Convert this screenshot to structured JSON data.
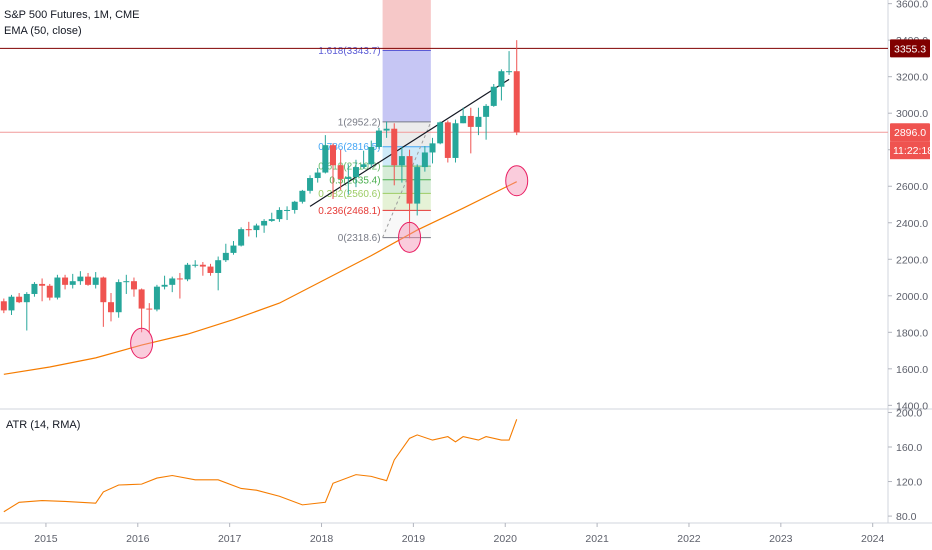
{
  "header": {
    "title": "S&P 500 Futures, 1M, CME",
    "indicator": "EMA (50, close)",
    "atr_label": "ATR (14, RMA)"
  },
  "badges": {
    "resistance": "3355.3",
    "last_price": "2896.0",
    "countdown": "11:22:18"
  },
  "colors": {
    "up": "#26a69a",
    "down": "#ef5350",
    "ema": "#f57c00",
    "atr": "#f57c00",
    "resistance": "#800000",
    "last_price_line": "#f19a9a",
    "countdown_bg": "#ef5350",
    "circle": "#f48fb1"
  },
  "chart_data": [
    {
      "type": "candlestick",
      "title": "S&P 500 Futures, 1M, CME",
      "y_ticks": [
        1400,
        1600,
        1800,
        2000,
        2200,
        2400,
        2600,
        2800,
        3000,
        3200,
        3400,
        3600
      ],
      "y_tick_labels": [
        "1400.0",
        "1600.0",
        "1800.0",
        "2000.0",
        "2200.0",
        "2400.0",
        "2600.0",
        "2800.0",
        "3000.0",
        "3200.0",
        "3400.0",
        "3600.0"
      ],
      "ylim": [
        1380,
        3620
      ],
      "x_range": [
        "2014-07",
        "2024-03"
      ],
      "x_ticks": [
        "2015",
        "2016",
        "2017",
        "2018",
        "2019",
        "2020",
        "2021",
        "2022",
        "2023",
        "2024"
      ],
      "candles": [
        {
          "t": "2014-07",
          "o": 1970,
          "h": 1985,
          "l": 1905,
          "c": 1920
        },
        {
          "t": "2014-08",
          "o": 1920,
          "h": 2005,
          "l": 1895,
          "c": 1995
        },
        {
          "t": "2014-09",
          "o": 1995,
          "h": 2015,
          "l": 1960,
          "c": 1965
        },
        {
          "t": "2014-10",
          "o": 1965,
          "h": 2020,
          "l": 1810,
          "c": 2010
        },
        {
          "t": "2014-11",
          "o": 2010,
          "h": 2075,
          "l": 1995,
          "c": 2065
        },
        {
          "t": "2014-12",
          "o": 2065,
          "h": 2095,
          "l": 1970,
          "c": 2055
        },
        {
          "t": "2015-01",
          "o": 2055,
          "h": 2065,
          "l": 1975,
          "c": 1990
        },
        {
          "t": "2015-02",
          "o": 1990,
          "h": 2115,
          "l": 1980,
          "c": 2100
        },
        {
          "t": "2015-03",
          "o": 2100,
          "h": 2115,
          "l": 2035,
          "c": 2060
        },
        {
          "t": "2015-04",
          "o": 2060,
          "h": 2120,
          "l": 2040,
          "c": 2080
        },
        {
          "t": "2015-05",
          "o": 2080,
          "h": 2135,
          "l": 2060,
          "c": 2105
        },
        {
          "t": "2015-06",
          "o": 2105,
          "h": 2125,
          "l": 2055,
          "c": 2060
        },
        {
          "t": "2015-07",
          "o": 2060,
          "h": 2130,
          "l": 2040,
          "c": 2100
        },
        {
          "t": "2015-08",
          "o": 2100,
          "h": 2105,
          "l": 1830,
          "c": 1965
        },
        {
          "t": "2015-09",
          "o": 1965,
          "h": 2015,
          "l": 1860,
          "c": 1910
        },
        {
          "t": "2015-10",
          "o": 1910,
          "h": 2090,
          "l": 1880,
          "c": 2075
        },
        {
          "t": "2015-11",
          "o": 2075,
          "h": 2115,
          "l": 2010,
          "c": 2080
        },
        {
          "t": "2015-12",
          "o": 2080,
          "h": 2100,
          "l": 1995,
          "c": 2035
        },
        {
          "t": "2016-01",
          "o": 2035,
          "h": 2040,
          "l": 1800,
          "c": 1930
        },
        {
          "t": "2016-02",
          "o": 1930,
          "h": 1960,
          "l": 1800,
          "c": 1925
        },
        {
          "t": "2016-03",
          "o": 1925,
          "h": 2060,
          "l": 1915,
          "c": 2050
        },
        {
          "t": "2016-04",
          "o": 2050,
          "h": 2110,
          "l": 2035,
          "c": 2060
        },
        {
          "t": "2016-05",
          "o": 2060,
          "h": 2105,
          "l": 2020,
          "c": 2095
        },
        {
          "t": "2016-06",
          "o": 2095,
          "h": 2125,
          "l": 1985,
          "c": 2090
        },
        {
          "t": "2016-07",
          "o": 2090,
          "h": 2180,
          "l": 2080,
          "c": 2170
        },
        {
          "t": "2016-08",
          "o": 2170,
          "h": 2195,
          "l": 2155,
          "c": 2170
        },
        {
          "t": "2016-09",
          "o": 2170,
          "h": 2185,
          "l": 2110,
          "c": 2160
        },
        {
          "t": "2016-10",
          "o": 2160,
          "h": 2175,
          "l": 2110,
          "c": 2125
        },
        {
          "t": "2016-11",
          "o": 2125,
          "h": 2215,
          "l": 2030,
          "c": 2195
        },
        {
          "t": "2016-12",
          "o": 2195,
          "h": 2285,
          "l": 2185,
          "c": 2235
        },
        {
          "t": "2017-01",
          "o": 2235,
          "h": 2300,
          "l": 2225,
          "c": 2275
        },
        {
          "t": "2017-02",
          "o": 2275,
          "h": 2375,
          "l": 2270,
          "c": 2365
        },
        {
          "t": "2017-03",
          "o": 2365,
          "h": 2405,
          "l": 2325,
          "c": 2360
        },
        {
          "t": "2017-04",
          "o": 2360,
          "h": 2395,
          "l": 2320,
          "c": 2385
        },
        {
          "t": "2017-05",
          "o": 2385,
          "h": 2420,
          "l": 2345,
          "c": 2410
        },
        {
          "t": "2017-06",
          "o": 2410,
          "h": 2455,
          "l": 2405,
          "c": 2420
        },
        {
          "t": "2017-07",
          "o": 2420,
          "h": 2485,
          "l": 2405,
          "c": 2470
        },
        {
          "t": "2017-08",
          "o": 2470,
          "h": 2490,
          "l": 2415,
          "c": 2470
        },
        {
          "t": "2017-09",
          "o": 2470,
          "h": 2520,
          "l": 2450,
          "c": 2515
        },
        {
          "t": "2017-10",
          "o": 2515,
          "h": 2580,
          "l": 2505,
          "c": 2575
        },
        {
          "t": "2017-11",
          "o": 2575,
          "h": 2660,
          "l": 2560,
          "c": 2645
        },
        {
          "t": "2017-12",
          "o": 2645,
          "h": 2700,
          "l": 2620,
          "c": 2675
        },
        {
          "t": "2018-01",
          "o": 2675,
          "h": 2880,
          "l": 2670,
          "c": 2825
        },
        {
          "t": "2018-02",
          "o": 2825,
          "h": 2835,
          "l": 2530,
          "c": 2715
        },
        {
          "t": "2018-03",
          "o": 2715,
          "h": 2800,
          "l": 2580,
          "c": 2640
        },
        {
          "t": "2018-04",
          "o": 2640,
          "h": 2720,
          "l": 2555,
          "c": 2650
        },
        {
          "t": "2018-05",
          "o": 2650,
          "h": 2745,
          "l": 2595,
          "c": 2705
        },
        {
          "t": "2018-06",
          "o": 2705,
          "h": 2795,
          "l": 2695,
          "c": 2720
        },
        {
          "t": "2018-07",
          "o": 2720,
          "h": 2850,
          "l": 2705,
          "c": 2815
        },
        {
          "t": "2018-08",
          "o": 2815,
          "h": 2920,
          "l": 2805,
          "c": 2905
        },
        {
          "t": "2018-09",
          "o": 2905,
          "h": 2955,
          "l": 2865,
          "c": 2915
        },
        {
          "t": "2018-10",
          "o": 2915,
          "h": 2945,
          "l": 2605,
          "c": 2715
        },
        {
          "t": "2018-11",
          "o": 2715,
          "h": 2815,
          "l": 2620,
          "c": 2765
        },
        {
          "t": "2018-12",
          "o": 2765,
          "h": 2800,
          "l": 2315,
          "c": 2505
        },
        {
          "t": "2019-01",
          "o": 2505,
          "h": 2720,
          "l": 2440,
          "c": 2705
        },
        {
          "t": "2019-02",
          "o": 2705,
          "h": 2820,
          "l": 2680,
          "c": 2785
        },
        {
          "t": "2019-03",
          "o": 2785,
          "h": 2865,
          "l": 2725,
          "c": 2835
        },
        {
          "t": "2019-04",
          "o": 2835,
          "h": 2955,
          "l": 2830,
          "c": 2950
        },
        {
          "t": "2019-05",
          "o": 2950,
          "h": 2960,
          "l": 2730,
          "c": 2755
        },
        {
          "t": "2019-06",
          "o": 2755,
          "h": 2965,
          "l": 2730,
          "c": 2945
        },
        {
          "t": "2019-07",
          "o": 2945,
          "h": 3030,
          "l": 2945,
          "c": 2985
        },
        {
          "t": "2019-08",
          "o": 2985,
          "h": 3030,
          "l": 2780,
          "c": 2925
        },
        {
          "t": "2019-09",
          "o": 2925,
          "h": 3030,
          "l": 2880,
          "c": 2980
        },
        {
          "t": "2019-10",
          "o": 2980,
          "h": 3050,
          "l": 2855,
          "c": 3040
        },
        {
          "t": "2019-11",
          "o": 3040,
          "h": 3160,
          "l": 3035,
          "c": 3145
        },
        {
          "t": "2019-12",
          "o": 3145,
          "h": 3240,
          "l": 3070,
          "c": 3230
        },
        {
          "t": "2020-01",
          "o": 3230,
          "h": 3340,
          "l": 3210,
          "c": 3230
        },
        {
          "t": "2020-02",
          "o": 3230,
          "h": 3400,
          "l": 2880,
          "c": 2896
        }
      ],
      "ema": [
        {
          "t": "2014-07",
          "v": 1570
        },
        {
          "t": "2015-01",
          "v": 1610
        },
        {
          "t": "2015-07",
          "v": 1660
        },
        {
          "t": "2016-01",
          "v": 1730
        },
        {
          "t": "2016-07",
          "v": 1790
        },
        {
          "t": "2017-01",
          "v": 1870
        },
        {
          "t": "2017-07",
          "v": 1960
        },
        {
          "t": "2018-01",
          "v": 2090
        },
        {
          "t": "2018-07",
          "v": 2220
        },
        {
          "t": "2019-01",
          "v": 2360
        },
        {
          "t": "2019-07",
          "v": 2480
        },
        {
          "t": "2020-02",
          "v": 2625
        }
      ],
      "levels": [
        {
          "value": 3355.3,
          "label": "3355.3",
          "kind": "resistance"
        },
        {
          "value": 2896.0,
          "label": "2896.0",
          "kind": "last"
        }
      ],
      "fibonacci": {
        "t_start": "2018-09",
        "t_end": "2019-02",
        "levels": [
          {
            "ratio": "1.618",
            "value": 3343.7,
            "label": "1.618(3343.7)",
            "color": "#5b5bd6"
          },
          {
            "ratio": "1",
            "value": 2952.2,
            "label": "1(2952.2)",
            "color": "#787b86"
          },
          {
            "ratio": "0.786",
            "value": 2816.5,
            "label": "0.786(2816.5)",
            "color": "#42a5f5"
          },
          {
            "ratio": "0.618",
            "value": 2710.2,
            "label": "0.618(2710.2)",
            "color": "#66bb6a"
          },
          {
            "ratio": "0.5",
            "value": 2635.4,
            "label": "0.5(2635.4)",
            "color": "#4caf50"
          },
          {
            "ratio": "0.382",
            "value": 2560.6,
            "label": "0.382(2560.6)",
            "color": "#9ccc65"
          },
          {
            "ratio": "0.236",
            "value": 2468.1,
            "label": "0.236(2468.1)",
            "color": "#e53935"
          },
          {
            "ratio": "0",
            "value": 2318.6,
            "label": "0(2318.6)",
            "color": "#787b86"
          }
        ]
      },
      "trendline": [
        {
          "t": "2017-11",
          "v": 2490
        },
        {
          "t": "2020-01",
          "v": 3185
        }
      ],
      "markers": [
        {
          "t": "2016-01",
          "v": 1740
        },
        {
          "t": "2018-12",
          "v": 2320
        },
        {
          "t": "2020-02",
          "v": 2630
        }
      ]
    },
    {
      "type": "line",
      "title": "ATR (14, RMA)",
      "y_ticks": [
        80,
        120,
        160,
        200
      ],
      "y_tick_labels": [
        "80.0",
        "120.0",
        "160.0",
        "200.0"
      ],
      "ylim": [
        72,
        204
      ],
      "series": [
        {
          "values": [
            {
              "t": "2014-07",
              "v": 85
            },
            {
              "t": "2014-09",
              "v": 96
            },
            {
              "t": "2014-12",
              "v": 98
            },
            {
              "t": "2015-03",
              "v": 97
            },
            {
              "t": "2015-07",
              "v": 95
            },
            {
              "t": "2015-08",
              "v": 108
            },
            {
              "t": "2015-10",
              "v": 116
            },
            {
              "t": "2016-01",
              "v": 117
            },
            {
              "t": "2016-03",
              "v": 124
            },
            {
              "t": "2016-05",
              "v": 127
            },
            {
              "t": "2016-08",
              "v": 122
            },
            {
              "t": "2016-11",
              "v": 122
            },
            {
              "t": "2017-02",
              "v": 112
            },
            {
              "t": "2017-04",
              "v": 110
            },
            {
              "t": "2017-07",
              "v": 103
            },
            {
              "t": "2017-10",
              "v": 93
            },
            {
              "t": "2018-01",
              "v": 96
            },
            {
              "t": "2018-02",
              "v": 118
            },
            {
              "t": "2018-05",
              "v": 128
            },
            {
              "t": "2018-07",
              "v": 126
            },
            {
              "t": "2018-09",
              "v": 121
            },
            {
              "t": "2018-10",
              "v": 145
            },
            {
              "t": "2018-12",
              "v": 170
            },
            {
              "t": "2019-01",
              "v": 174
            },
            {
              "t": "2019-03",
              "v": 168
            },
            {
              "t": "2019-05",
              "v": 172
            },
            {
              "t": "2019-06",
              "v": 166
            },
            {
              "t": "2019-07",
              "v": 172
            },
            {
              "t": "2019-09",
              "v": 168
            },
            {
              "t": "2019-10",
              "v": 172
            },
            {
              "t": "2019-12",
              "v": 168
            },
            {
              "t": "2020-01",
              "v": 168
            },
            {
              "t": "2020-02",
              "v": 192
            }
          ]
        }
      ]
    }
  ]
}
